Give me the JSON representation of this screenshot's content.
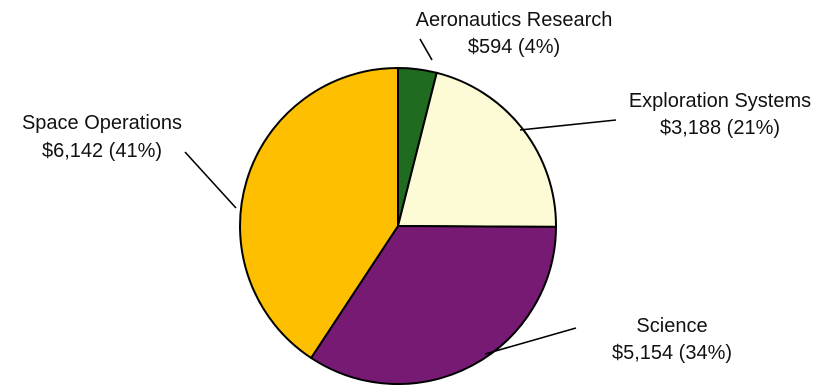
{
  "chart_data": {
    "type": "pie",
    "title": "",
    "slices": [
      {
        "name": "Aeronautics Research",
        "value": 594,
        "value_label": "$594 (4%)",
        "percent": 4,
        "color": "#1f6b1f"
      },
      {
        "name": "Exploration Systems",
        "value": 3188,
        "value_label": "$3,188 (21%)",
        "percent": 21,
        "color": "#fdfbd6"
      },
      {
        "name": "Science",
        "value": 5154,
        "value_label": "$5,154 (34%)",
        "percent": 34,
        "color": "#761a74"
      },
      {
        "name": "Space Operations",
        "value": 6142,
        "value_label": "$6,142 (41%)",
        "percent": 41,
        "color": "#fdbf00"
      }
    ],
    "start": "top",
    "direction": "clockwise",
    "legend": "none",
    "labels": "outside-with-leader-lines"
  }
}
